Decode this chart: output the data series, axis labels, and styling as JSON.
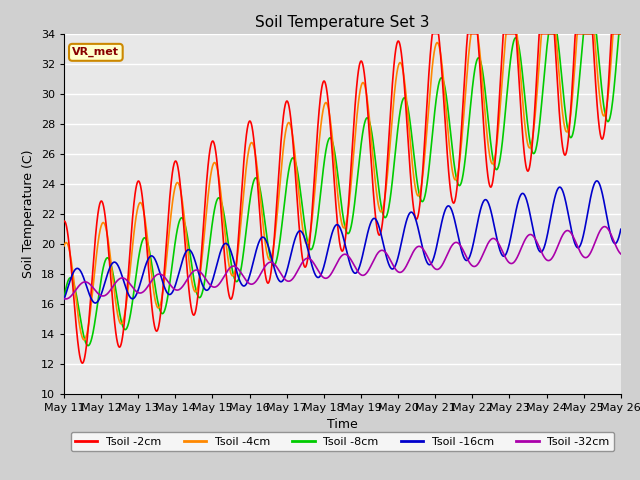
{
  "title": "Soil Temperature Set 3",
  "xlabel": "Time",
  "ylabel": "Soil Temperature (C)",
  "ylim": [
    10,
    34
  ],
  "xlim_days": [
    0,
    15
  ],
  "fig_bg": "#d0d0d0",
  "ax_bg": "#e8e8e8",
  "grid_color": "#ffffff",
  "annotation_text": "VR_met",
  "annotation_bg": "#ffffcc",
  "annotation_border": "#cc8800",
  "annotation_text_color": "#880000",
  "series": {
    "Tsoil -2cm": {
      "color": "#ff0000",
      "lw": 1.2
    },
    "Tsoil -4cm": {
      "color": "#ff8800",
      "lw": 1.2
    },
    "Tsoil -8cm": {
      "color": "#00cc00",
      "lw": 1.2
    },
    "Tsoil -16cm": {
      "color": "#0000cc",
      "lw": 1.2
    },
    "Tsoil -32cm": {
      "color": "#aa00aa",
      "lw": 1.2
    }
  },
  "tick_dates": [
    "May 11",
    "May 12",
    "May 13",
    "May 14",
    "May 15",
    "May 16",
    "May 17",
    "May 18",
    "May 19",
    "May 20",
    "May 21",
    "May 22",
    "May 23",
    "May 24",
    "May 25",
    "May 26"
  ],
  "tick_positions": [
    0,
    1,
    2,
    3,
    4,
    5,
    6,
    7,
    8,
    9,
    10,
    11,
    12,
    13,
    14,
    15
  ]
}
